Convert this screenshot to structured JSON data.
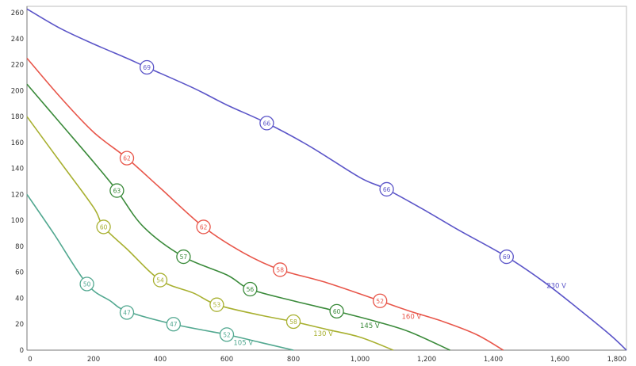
{
  "chart_data": {
    "type": "line",
    "title": "",
    "xlabel": "",
    "ylabel": "",
    "xlim": [
      0,
      1800
    ],
    "ylim": [
      0,
      265
    ],
    "x_ticks": [
      0,
      200,
      400,
      600,
      800,
      1000,
      1200,
      1400,
      1600,
      1800
    ],
    "x_tick_labels": [
      "0",
      "200",
      "400",
      "600",
      "800",
      "1,000",
      "1,200",
      "1,400",
      "1,600",
      "1,800"
    ],
    "y_ticks": [
      0,
      20,
      40,
      60,
      80,
      100,
      120,
      140,
      160,
      180,
      200,
      220,
      240,
      260
    ],
    "y_tick_labels": [
      "0",
      "20",
      "40",
      "60",
      "80",
      "100",
      "120",
      "140",
      "160",
      "180",
      "200",
      "220",
      "240",
      "260"
    ],
    "grid": true,
    "series": [
      {
        "name": "230 V",
        "color": "#5b55c8",
        "label_at": [
          1560,
          48
        ],
        "points": [
          [
            0,
            263
          ],
          [
            100,
            248
          ],
          [
            200,
            236
          ],
          [
            300,
            225
          ],
          [
            360,
            218
          ],
          [
            500,
            202
          ],
          [
            600,
            189
          ],
          [
            720,
            175
          ],
          [
            850,
            157
          ],
          [
            1000,
            133
          ],
          [
            1080,
            124
          ],
          [
            1200,
            107
          ],
          [
            1300,
            92
          ],
          [
            1440,
            72
          ],
          [
            1550,
            53
          ],
          [
            1650,
            33
          ],
          [
            1750,
            12
          ],
          [
            1800,
            0
          ]
        ],
        "markers": [
          {
            "x": 360,
            "y": 218,
            "label": "69"
          },
          {
            "x": 720,
            "y": 175,
            "label": "66"
          },
          {
            "x": 1080,
            "y": 124,
            "label": "66"
          },
          {
            "x": 1440,
            "y": 72,
            "label": "69"
          }
        ]
      },
      {
        "name": "160 V",
        "color": "#e8564a",
        "label_at": [
          1125,
          24
        ],
        "points": [
          [
            0,
            225
          ],
          [
            100,
            195
          ],
          [
            200,
            168
          ],
          [
            300,
            148
          ],
          [
            400,
            125
          ],
          [
            530,
            95
          ],
          [
            650,
            75
          ],
          [
            760,
            62
          ],
          [
            900,
            52
          ],
          [
            1060,
            38
          ],
          [
            1150,
            30
          ],
          [
            1250,
            22
          ],
          [
            1350,
            12
          ],
          [
            1430,
            0
          ]
        ],
        "markers": [
          {
            "x": 300,
            "y": 148,
            "label": "62"
          },
          {
            "x": 530,
            "y": 95,
            "label": "62"
          },
          {
            "x": 760,
            "y": 62,
            "label": "58"
          },
          {
            "x": 1060,
            "y": 38,
            "label": "52"
          }
        ]
      },
      {
        "name": "145 V",
        "color": "#3a8a3a",
        "label_at": [
          1000,
          17
        ],
        "points": [
          [
            0,
            205
          ],
          [
            100,
            175
          ],
          [
            200,
            145
          ],
          [
            270,
            123
          ],
          [
            350,
            95
          ],
          [
            470,
            72
          ],
          [
            600,
            58
          ],
          [
            670,
            47
          ],
          [
            800,
            38
          ],
          [
            930,
            30
          ],
          [
            1050,
            22
          ],
          [
            1150,
            14
          ],
          [
            1270,
            0
          ]
        ],
        "markers": [
          {
            "x": 270,
            "y": 123,
            "label": "63"
          },
          {
            "x": 470,
            "y": 72,
            "label": "57"
          },
          {
            "x": 670,
            "y": 47,
            "label": "56"
          },
          {
            "x": 930,
            "y": 30,
            "label": "60"
          }
        ]
      },
      {
        "name": "130 V",
        "color": "#a8b030",
        "label_at": [
          860,
          11
        ],
        "points": [
          [
            0,
            180
          ],
          [
            100,
            145
          ],
          [
            200,
            110
          ],
          [
            230,
            95
          ],
          [
            300,
            78
          ],
          [
            400,
            54
          ],
          [
            500,
            44
          ],
          [
            570,
            35
          ],
          [
            700,
            27
          ],
          [
            800,
            22
          ],
          [
            900,
            16
          ],
          [
            1000,
            10
          ],
          [
            1100,
            0
          ]
        ],
        "markers": [
          {
            "x": 230,
            "y": 95,
            "label": "60"
          },
          {
            "x": 400,
            "y": 54,
            "label": "54"
          },
          {
            "x": 570,
            "y": 35,
            "label": "53"
          },
          {
            "x": 800,
            "y": 22,
            "label": "58"
          }
        ]
      },
      {
        "name": "105 V",
        "color": "#52a890",
        "label_at": [
          620,
          4
        ],
        "points": [
          [
            0,
            120
          ],
          [
            80,
            90
          ],
          [
            180,
            51
          ],
          [
            250,
            38
          ],
          [
            300,
            30
          ],
          [
            440,
            20
          ],
          [
            600,
            12
          ],
          [
            700,
            6
          ],
          [
            800,
            0
          ]
        ],
        "markers": [
          {
            "x": 180,
            "y": 51,
            "label": "50"
          },
          {
            "x": 300,
            "y": 29,
            "label": "47"
          },
          {
            "x": 440,
            "y": 20,
            "label": "47"
          },
          {
            "x": 600,
            "y": 12,
            "label": "52"
          }
        ]
      }
    ]
  }
}
